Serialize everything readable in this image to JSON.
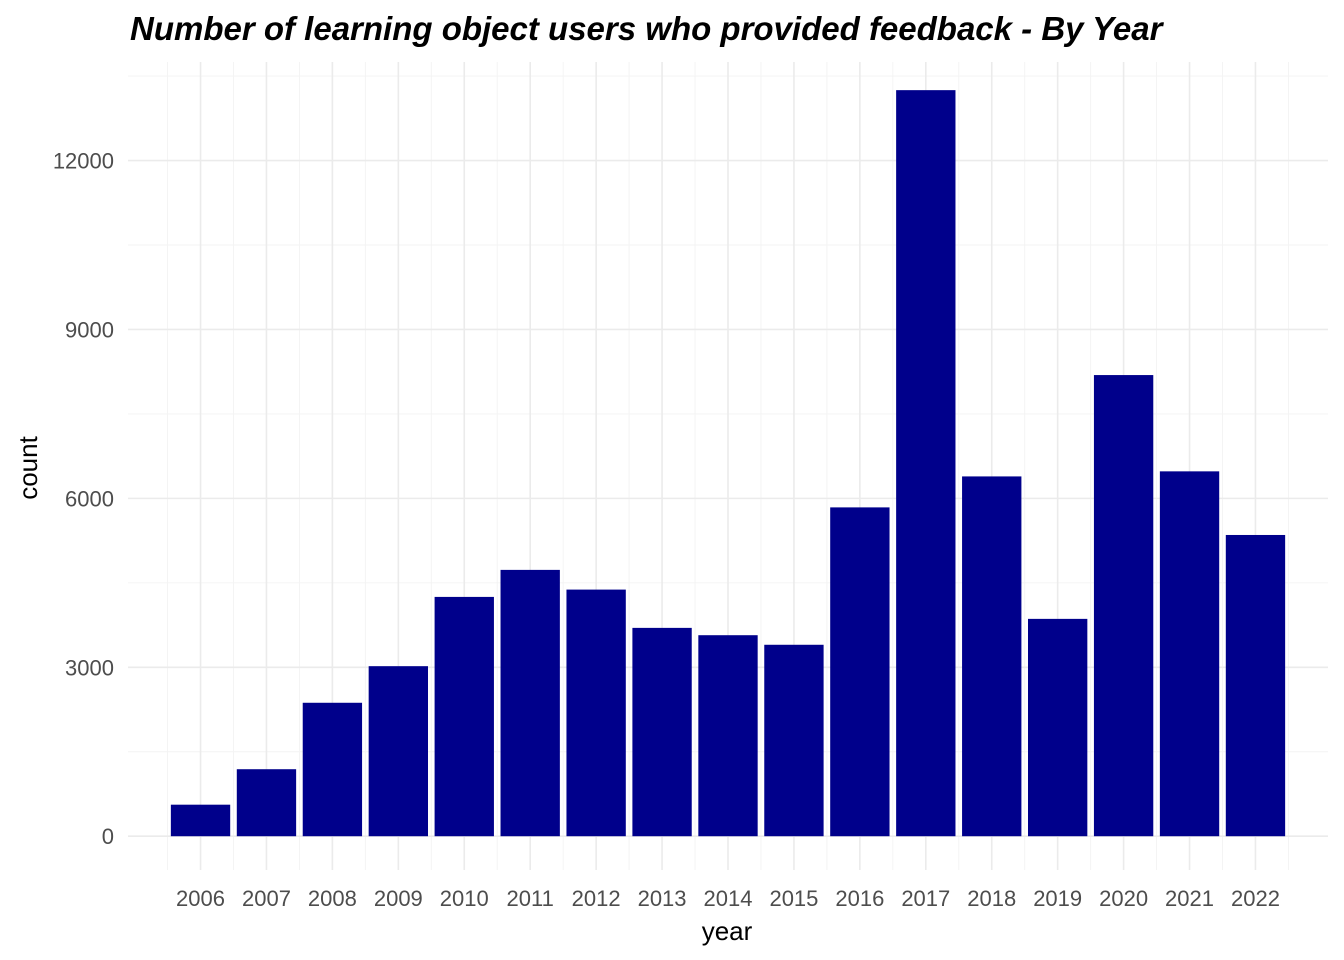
{
  "chart_data": {
    "type": "bar",
    "title": "Number of learning object users who provided feedback - By Year",
    "xlabel": "year",
    "ylabel": "count",
    "categories": [
      "2006",
      "2007",
      "2008",
      "2009",
      "2010",
      "2011",
      "2012",
      "2013",
      "2014",
      "2015",
      "2016",
      "2017",
      "2018",
      "2019",
      "2020",
      "2021",
      "2022"
    ],
    "values": [
      560,
      1190,
      2370,
      3020,
      4250,
      4730,
      4380,
      3700,
      3570,
      3400,
      5840,
      13250,
      6390,
      3860,
      8190,
      6480,
      5350
    ],
    "ylim": [
      -600,
      13750
    ],
    "yticks": [
      0,
      3000,
      6000,
      9000,
      12000
    ],
    "ytick_labels": [
      "0",
      "3000",
      "6000",
      "9000",
      "12000"
    ],
    "bar_color": "#00008b",
    "grid": true,
    "legend": "none"
  }
}
